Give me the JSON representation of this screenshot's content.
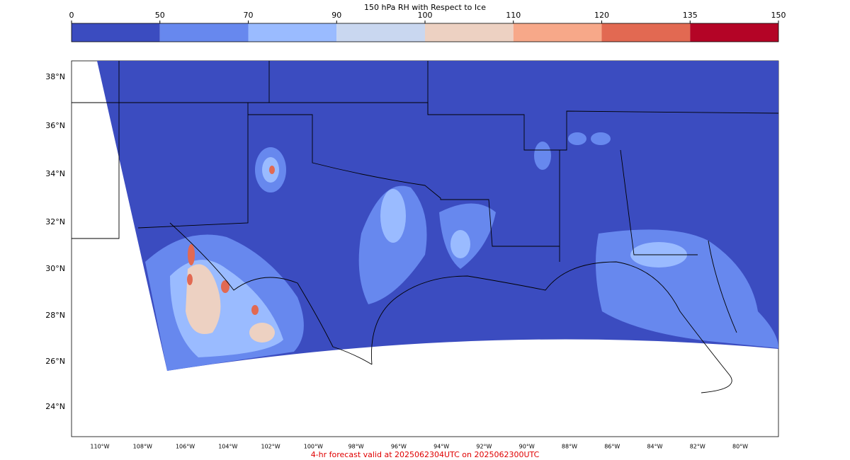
{
  "colorbar": {
    "title": "150 hPa RH with Respect to Ice",
    "ticks": [
      0,
      50,
      70,
      90,
      100,
      110,
      120,
      135,
      150
    ],
    "colors": [
      "#3b4cc0",
      "#6788ee",
      "#9abbff",
      "#c9d7f0",
      "#edd1c2",
      "#f7a889",
      "#e26952",
      "#b40426"
    ]
  },
  "map": {
    "lat_labels": [
      "38°N",
      "36°N",
      "34°N",
      "32°N",
      "30°N",
      "28°N",
      "26°N",
      "24°N"
    ],
    "lon_labels": [
      "110°W",
      "108°W",
      "106°W",
      "104°W",
      "102°W",
      "100°W",
      "98°W",
      "96°W",
      "94°W",
      "92°W",
      "90°W",
      "88°W",
      "86°W",
      "84°W",
      "82°W",
      "80°W"
    ]
  },
  "footer": "4-hr forecast valid at 2025062304UTC on 2025062300UTC"
}
